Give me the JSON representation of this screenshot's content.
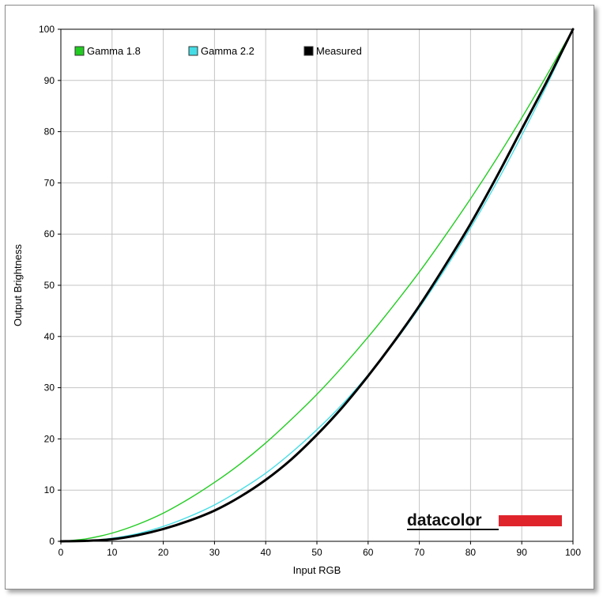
{
  "chart_data": {
    "type": "line",
    "title": "",
    "xlabel": "Input RGB",
    "ylabel": "Output Brightness",
    "xlim": [
      0,
      100
    ],
    "ylim": [
      0,
      100
    ],
    "xticks": [
      0,
      10,
      20,
      30,
      40,
      50,
      60,
      70,
      80,
      90,
      100
    ],
    "yticks": [
      0,
      10,
      20,
      30,
      40,
      50,
      60,
      70,
      80,
      90,
      100
    ],
    "grid": true,
    "legend_position": "top-left",
    "x": [
      0,
      5,
      10,
      15,
      20,
      25,
      30,
      35,
      40,
      45,
      50,
      55,
      60,
      65,
      70,
      75,
      80,
      85,
      90,
      95,
      100
    ],
    "series": [
      {
        "name": "Gamma 1.8",
        "color": "#22cc22",
        "values": [
          0,
          0.5,
          1.6,
          3.3,
          5.5,
          8.3,
          11.5,
          15.1,
          19.2,
          23.8,
          28.7,
          34.1,
          39.9,
          46.1,
          52.6,
          59.6,
          66.9,
          74.6,
          82.7,
          91.2,
          100
        ]
      },
      {
        "name": "Gamma 2.2",
        "color": "#44dde6",
        "values": [
          0,
          0.1,
          0.6,
          1.5,
          2.9,
          4.8,
          7.1,
          10.0,
          13.3,
          17.3,
          21.8,
          26.8,
          32.5,
          38.7,
          45.6,
          53.1,
          61.2,
          69.9,
          79.3,
          89.3,
          100
        ]
      },
      {
        "name": "Measured",
        "color": "#000000",
        "values": [
          0,
          0.1,
          0.4,
          1.2,
          2.4,
          4.0,
          6.0,
          8.7,
          12.0,
          16.0,
          20.8,
          26.2,
          32.3,
          38.9,
          46.0,
          53.8,
          62.0,
          71.0,
          80.5,
          90.0,
          100
        ]
      }
    ]
  },
  "branding": {
    "logo_text": "datacolor",
    "accent_color": "#e0242c"
  }
}
